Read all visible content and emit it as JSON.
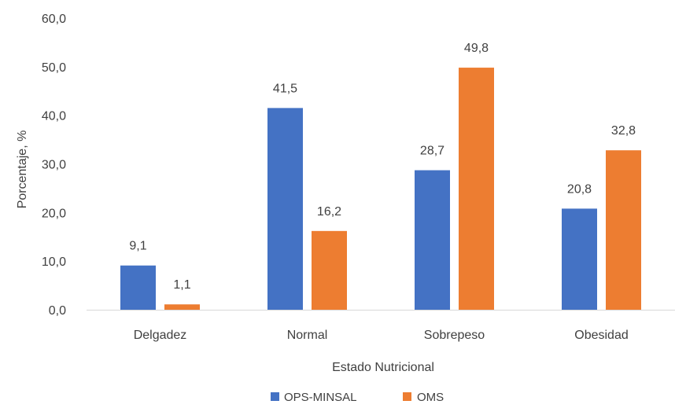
{
  "chart_data": {
    "type": "bar",
    "title": "",
    "xlabel": "Estado Nutricional",
    "ylabel": "Porcentaje, %",
    "categories": [
      "Delgadez",
      "Normal",
      "Sobrepeso",
      "Obesidad"
    ],
    "series": [
      {
        "name": "OPS-MINSAL",
        "values": [
          9.1,
          41.5,
          28.7,
          20.8
        ],
        "labels": [
          "9,1",
          "41,5",
          "28,7",
          "20,8"
        ],
        "color": "#4472C4"
      },
      {
        "name": "OMS",
        "values": [
          1.1,
          16.2,
          49.8,
          32.8
        ],
        "labels": [
          "1,1",
          "16,2",
          "49,8",
          "32,8"
        ],
        "color": "#ED7D31"
      }
    ],
    "ylim": [
      0,
      60
    ],
    "yticks": [
      0,
      10,
      20,
      30,
      40,
      50,
      60
    ],
    "ytick_labels": [
      "0,0",
      "10,0",
      "20,0",
      "30,0",
      "40,0",
      "50,0",
      "60,0"
    ],
    "grid": false,
    "legend_position": "bottom"
  }
}
